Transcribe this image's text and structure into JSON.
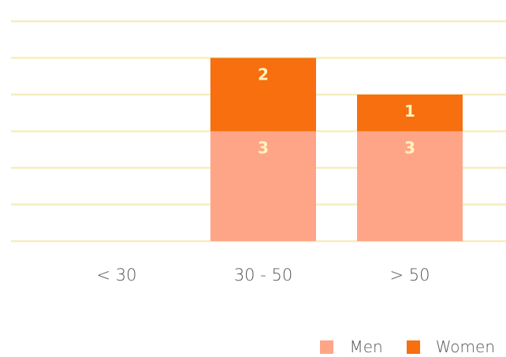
{
  "chart_data": {
    "type": "bar",
    "stacked": true,
    "categories": [
      "< 30",
      "30 - 50",
      "> 50"
    ],
    "series": [
      {
        "name": "Men",
        "values": [
          0,
          3,
          3
        ],
        "color": "#FFA587"
      },
      {
        "name": "Women",
        "values": [
          0,
          2,
          1
        ],
        "color": "#F76F0E"
      }
    ],
    "ylim": [
      0,
      6
    ],
    "grid": true,
    "grid_color": "#F5EDBF",
    "data_label_color": "#FFF3C0",
    "legend_position": "bottom-right",
    "title": "",
    "xlabel": "",
    "ylabel": ""
  }
}
